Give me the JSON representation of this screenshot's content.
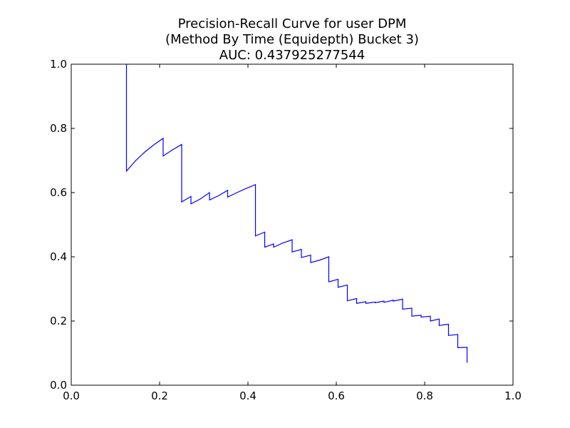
{
  "chart_data": {
    "type": "line",
    "title": [
      "Precision-Recall Curve for user DPM",
      "(Method By Time (Equidepth) Bucket 3)",
      "AUC: 0.437925277544"
    ],
    "xlabel": "",
    "ylabel": "",
    "xlim": [
      0.0,
      1.0
    ],
    "ylim": [
      0.0,
      1.0
    ],
    "x_ticks": [
      "0.0",
      "0.2",
      "0.4",
      "0.6",
      "0.8",
      "1.0"
    ],
    "y_ticks": [
      "0.0",
      "0.2",
      "0.4",
      "0.6",
      "0.8",
      "1.0"
    ],
    "grid": false,
    "legend": "none",
    "series": [
      {
        "color": "#0000ff",
        "x": [
          0.125,
          0.125,
          0.146,
          0.167,
          0.188,
          0.208,
          0.208,
          0.229,
          0.25,
          0.25,
          0.271,
          0.271,
          0.292,
          0.313,
          0.313,
          0.333,
          0.354,
          0.354,
          0.375,
          0.396,
          0.417,
          0.417,
          0.438,
          0.438,
          0.458,
          0.458,
          0.479,
          0.5,
          0.5,
          0.521,
          0.521,
          0.542,
          0.542,
          0.563,
          0.583,
          0.583,
          0.604,
          0.604,
          0.625,
          0.625,
          0.646,
          0.646,
          0.667,
          0.667,
          0.688,
          0.688,
          0.708,
          0.708,
          0.729,
          0.729,
          0.75,
          0.75,
          0.771,
          0.771,
          0.792,
          0.792,
          0.813,
          0.813,
          0.833,
          0.833,
          0.854,
          0.854,
          0.875,
          0.875,
          0.896,
          0.896
        ],
        "y": [
          1.0,
          0.667,
          0.7,
          0.727,
          0.75,
          0.769,
          0.714,
          0.733,
          0.75,
          0.571,
          0.588,
          0.565,
          0.58,
          0.6,
          0.577,
          0.59,
          0.607,
          0.586,
          0.6,
          0.613,
          0.625,
          0.465,
          0.477,
          0.43,
          0.44,
          0.43,
          0.443,
          0.453,
          0.415,
          0.423,
          0.398,
          0.405,
          0.382,
          0.39,
          0.4,
          0.322,
          0.33,
          0.305,
          0.312,
          0.263,
          0.27,
          0.255,
          0.26,
          0.255,
          0.259,
          0.257,
          0.262,
          0.258,
          0.265,
          0.262,
          0.268,
          0.237,
          0.24,
          0.215,
          0.218,
          0.212,
          0.215,
          0.2,
          0.206,
          0.186,
          0.19,
          0.155,
          0.158,
          0.117,
          0.118,
          0.07
        ]
      }
    ]
  }
}
